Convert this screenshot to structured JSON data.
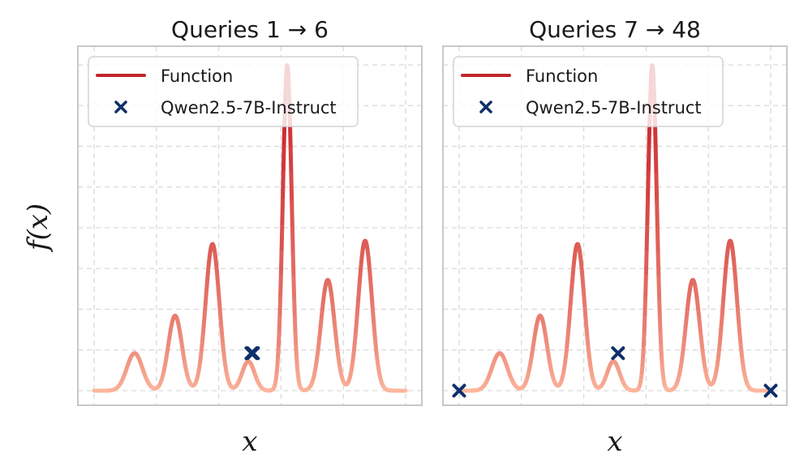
{
  "chart_data": [
    {
      "type": "line",
      "title": "Queries 1 → 6",
      "xlabel": "x",
      "ylabel": "f(x)",
      "grid": true,
      "legend_position": "top-left",
      "legend": [
        "Function",
        "Qwen2.5-7B-Instruct"
      ],
      "series": [
        {
          "name": "Function",
          "kind": "line",
          "color": "#c0262b"
        },
        {
          "name": "Qwen2.5-7B-Instruct",
          "kind": "scatter",
          "marker": "x",
          "color": "#0e2f6b",
          "points": [
            {
              "x": 0.505,
              "y": 0.115
            },
            {
              "x": 0.51,
              "y": 0.115
            }
          ]
        }
      ]
    },
    {
      "type": "line",
      "title": "Queries 7 → 48",
      "xlabel": "x",
      "ylabel": "",
      "grid": true,
      "legend_position": "top-left",
      "legend": [
        "Function",
        "Qwen2.5-7B-Instruct"
      ],
      "series": [
        {
          "name": "Function",
          "kind": "line",
          "color": "#c0262b"
        },
        {
          "name": "Qwen2.5-7B-Instruct",
          "kind": "scatter",
          "marker": "x",
          "color": "#0e2f6b",
          "points": [
            {
              "x": 0.0,
              "y": 0.0
            },
            {
              "x": 0.51,
              "y": 0.115
            },
            {
              "x": 1.0,
              "y": 0.0
            }
          ]
        }
      ]
    }
  ],
  "function_peaks": [
    {
      "center": 0.13,
      "height": 0.115,
      "width": 0.025
    },
    {
      "center": 0.26,
      "height": 0.23,
      "width": 0.022
    },
    {
      "center": 0.38,
      "height": 0.45,
      "width": 0.022
    },
    {
      "center": 0.495,
      "height": 0.09,
      "width": 0.02
    },
    {
      "center": 0.62,
      "height": 1.0,
      "width": 0.014
    },
    {
      "center": 0.75,
      "height": 0.34,
      "width": 0.022
    },
    {
      "center": 0.87,
      "height": 0.46,
      "width": 0.022
    }
  ],
  "colors": {
    "low": "#fcb89e",
    "high": "#c81d25",
    "marker": "#0e2f6b",
    "grid": "#d9d9d9",
    "frame": "#c8c8c8"
  }
}
